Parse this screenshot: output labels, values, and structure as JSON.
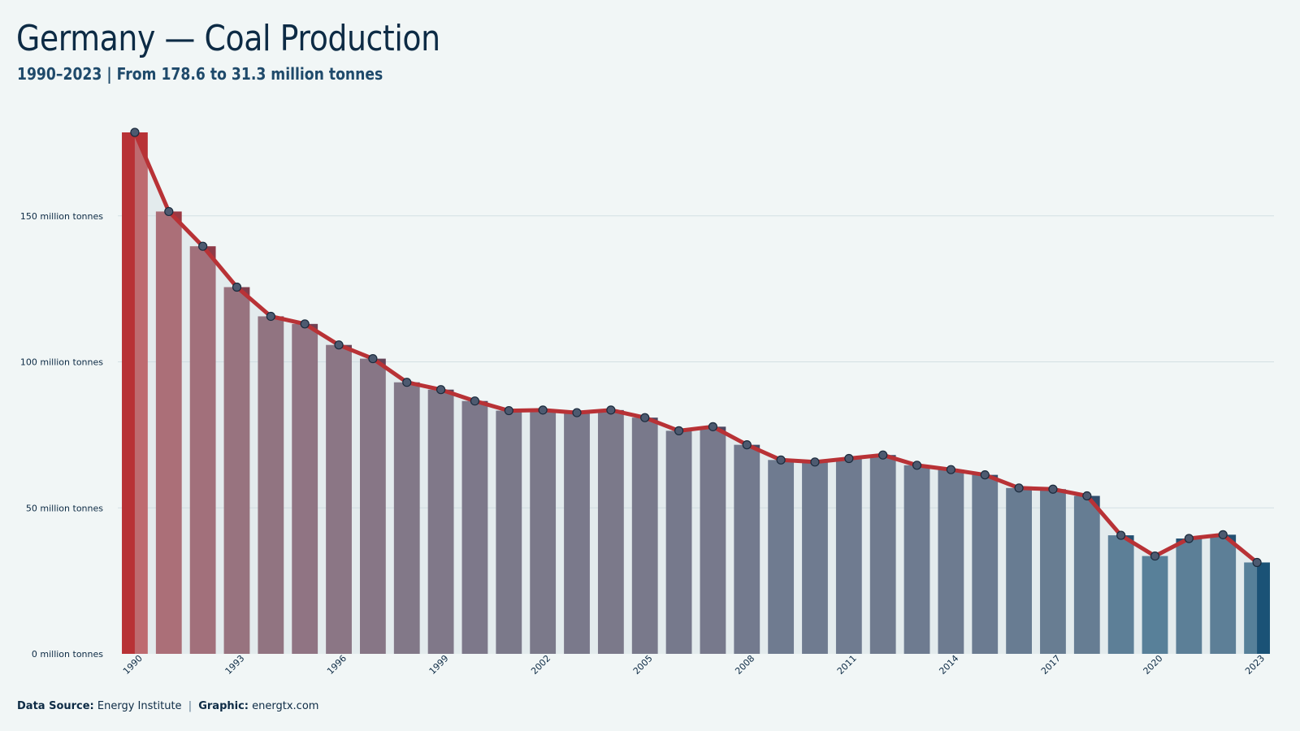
{
  "header": {
    "title": "Germany — Coal Production",
    "subtitle": "1990–2023 | From 178.6 to 31.3 million tonnes"
  },
  "footer": {
    "source_label": "Data Source:",
    "source_value": "Energy Institute",
    "separator": "|",
    "graphic_label": "Graphic:",
    "graphic_value": "energtx.com"
  },
  "chart_data": {
    "type": "bar",
    "title": "Germany — Coal Production",
    "subtitle": "1990–2023 | From 178.6 to 31.3 million tonnes",
    "xlabel": "",
    "ylabel": "",
    "ylim": [
      0,
      185
    ],
    "y_ticks": [
      0,
      50,
      100,
      150
    ],
    "y_tick_labels": [
      "0 million tonnes",
      "50 million tonnes",
      "100 million tonnes",
      "150 million tonnes"
    ],
    "x_tick_labels": [
      "1990",
      "1993",
      "1996",
      "1999",
      "2002",
      "2005",
      "2008",
      "2011",
      "2014",
      "2017",
      "2020",
      "2023"
    ],
    "grid": true,
    "overlay": "line with markers",
    "color_start": "#b83236",
    "color_end": "#1a5276",
    "line_color": "#b83236",
    "marker_color": "#4d5a70",
    "categories": [
      "1990",
      "1991",
      "1992",
      "1993",
      "1994",
      "1995",
      "1996",
      "1997",
      "1998",
      "1999",
      "2000",
      "2001",
      "2002",
      "2003",
      "2004",
      "2005",
      "2006",
      "2007",
      "2008",
      "2009",
      "2010",
      "2011",
      "2012",
      "2013",
      "2014",
      "2015",
      "2016",
      "2017",
      "2018",
      "2019",
      "2020",
      "2021",
      "2022",
      "2023"
    ],
    "values": [
      178.6,
      151.5,
      139.6,
      125.6,
      115.6,
      113.0,
      105.8,
      101.1,
      93.0,
      90.5,
      86.6,
      83.3,
      83.5,
      82.6,
      83.5,
      80.9,
      76.4,
      77.8,
      71.6,
      66.4,
      65.7,
      66.9,
      68.1,
      64.6,
      63.1,
      61.3,
      56.8,
      56.4,
      54.1,
      40.6,
      33.5,
      39.5,
      40.8,
      31.3
    ]
  }
}
